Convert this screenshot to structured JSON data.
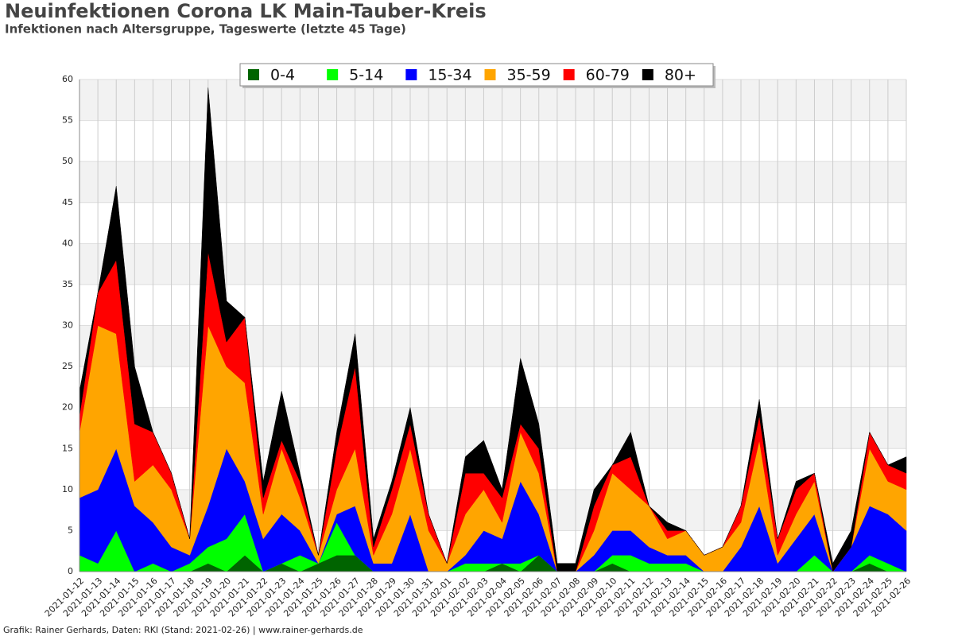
{
  "chart_data": {
    "type": "stacked-area",
    "title": "Neuinfektionen Corona LK Main-Tauber-Kreis",
    "subtitle": "Infektionen nach Altersgruppe, Tageswerte (letzte 45 Tage)",
    "source": "Grafik: Rainer Gerhards, Daten: RKI (Stand: 2021-02-26) | www.rainer-gerhards.de",
    "categories": [
      "2021-01-12",
      "2021-01-13",
      "2021-01-14",
      "2021-01-15",
      "2021-01-16",
      "2021-01-17",
      "2021-01-18",
      "2021-01-19",
      "2021-01-20",
      "2021-01-21",
      "2021-01-22",
      "2021-01-23",
      "2021-01-24",
      "2021-01-25",
      "2021-01-26",
      "2021-01-27",
      "2021-01-28",
      "2021-01-29",
      "2021-01-30",
      "2021-01-31",
      "2021-02-01",
      "2021-02-02",
      "2021-02-03",
      "2021-02-04",
      "2021-02-05",
      "2021-02-06",
      "2021-02-07",
      "2021-02-08",
      "2021-02-09",
      "2021-02-10",
      "2021-02-11",
      "2021-02-12",
      "2021-02-13",
      "2021-02-14",
      "2021-02-15",
      "2021-02-16",
      "2021-02-17",
      "2021-02-18",
      "2021-02-19",
      "2021-02-20",
      "2021-02-21",
      "2021-02-22",
      "2021-02-23",
      "2021-02-24",
      "2021-02-25",
      "2021-02-26"
    ],
    "series": [
      {
        "name": "0-4",
        "color": "#006400",
        "values": [
          0,
          0,
          0,
          0,
          0,
          0,
          0,
          1,
          0,
          2,
          0,
          1,
          0,
          1,
          2,
          2,
          0,
          0,
          0,
          0,
          0,
          0,
          0,
          1,
          0,
          2,
          0,
          0,
          0,
          1,
          0,
          0,
          0,
          0,
          0,
          0,
          0,
          0,
          0,
          0,
          0,
          0,
          0,
          1,
          0,
          0
        ]
      },
      {
        "name": "5-14",
        "color": "#00ff00",
        "values": [
          2,
          1,
          5,
          0,
          1,
          0,
          1,
          2,
          4,
          5,
          0,
          0,
          2,
          0,
          4,
          0,
          0,
          0,
          0,
          0,
          0,
          1,
          1,
          0,
          1,
          0,
          0,
          0,
          0,
          1,
          2,
          1,
          1,
          1,
          0,
          0,
          0,
          0,
          0,
          0,
          2,
          0,
          0,
          1,
          1,
          0
        ]
      },
      {
        "name": "15-34",
        "color": "#0000ff",
        "values": [
          7,
          9,
          10,
          8,
          5,
          3,
          1,
          5,
          11,
          4,
          4,
          6,
          3,
          0,
          1,
          6,
          1,
          1,
          7,
          0,
          0,
          1,
          4,
          3,
          10,
          5,
          0,
          0,
          2,
          3,
          3,
          2,
          1,
          1,
          0,
          0,
          3,
          8,
          1,
          4,
          5,
          0,
          3,
          6,
          6,
          5
        ]
      },
      {
        "name": "35-59",
        "color": "#ffa500",
        "values": [
          8,
          20,
          14,
          3,
          7,
          7,
          2,
          22,
          10,
          12,
          3,
          8,
          4,
          1,
          3,
          7,
          1,
          6,
          8,
          5,
          1,
          5,
          5,
          2,
          6,
          5,
          0,
          0,
          3,
          7,
          5,
          5,
          2,
          3,
          2,
          3,
          3,
          8,
          1,
          3,
          4,
          0,
          0,
          7,
          4,
          5
        ]
      },
      {
        "name": "60-79",
        "color": "#ff0000",
        "values": [
          2,
          4,
          9,
          7,
          4,
          2,
          0,
          9,
          3,
          8,
          2,
          1,
          2,
          0,
          5,
          10,
          1,
          3,
          3,
          2,
          0,
          5,
          2,
          3,
          1,
          3,
          0,
          0,
          3,
          1,
          4,
          0,
          1,
          0,
          0,
          0,
          2,
          3,
          2,
          3,
          1,
          0,
          0,
          2,
          2,
          2
        ]
      },
      {
        "name": "80+",
        "color": "#000000",
        "values": [
          3,
          0,
          9,
          7,
          0,
          0,
          0,
          20,
          5,
          0,
          2,
          6,
          1,
          0,
          2,
          4,
          1,
          1,
          2,
          0,
          0,
          2,
          4,
          1,
          8,
          3,
          1,
          1,
          2,
          0,
          3,
          0,
          1,
          0,
          0,
          0,
          0,
          2,
          0,
          1,
          0,
          1,
          2,
          0,
          0,
          2
        ]
      }
    ],
    "ylim": [
      0,
      60
    ],
    "yticks": [
      0,
      5,
      10,
      15,
      20,
      25,
      30,
      35,
      40,
      45,
      50,
      55,
      60
    ],
    "grid": true
  }
}
